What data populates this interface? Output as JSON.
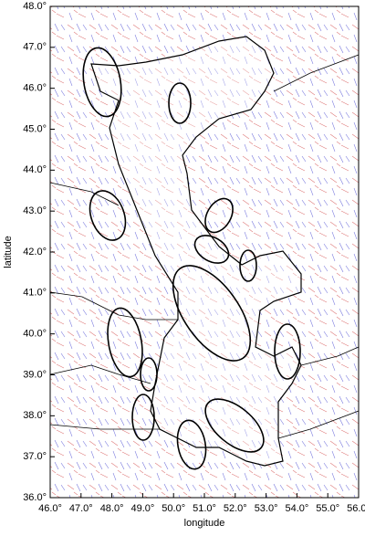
{
  "axes": {
    "x_label": "longitude",
    "y_label": "latitude",
    "xlim": [
      46,
      56
    ],
    "ylim": [
      36,
      48
    ],
    "xticks": [
      {
        "value": 46,
        "label": "46.0°"
      },
      {
        "value": 47,
        "label": "47.0°"
      },
      {
        "value": 48,
        "label": "48.0°"
      },
      {
        "value": 49,
        "label": "49.0°"
      },
      {
        "value": 50,
        "label": "50.0°"
      },
      {
        "value": 51,
        "label": "51.0°"
      },
      {
        "value": 52,
        "label": "52.0°"
      },
      {
        "value": 53,
        "label": "53.0°"
      },
      {
        "value": 54,
        "label": "54.0°"
      },
      {
        "value": 55,
        "label": "55.0°"
      },
      {
        "value": 56,
        "label": "56.0°"
      }
    ],
    "yticks": [
      {
        "value": 36,
        "label": "36.0°"
      },
      {
        "value": 37,
        "label": "37.0°"
      },
      {
        "value": 38,
        "label": "38.0°"
      },
      {
        "value": 39,
        "label": "39.0°"
      },
      {
        "value": 40,
        "label": "40.0°"
      },
      {
        "value": 41,
        "label": "41.0°"
      },
      {
        "value": 42,
        "label": "42.0°"
      },
      {
        "value": 43,
        "label": "43.0°"
      },
      {
        "value": 44,
        "label": "44.0°"
      },
      {
        "value": 45,
        "label": "45.0°"
      },
      {
        "value": 46,
        "label": "46.0°"
      },
      {
        "value": 47,
        "label": "47.0°"
      },
      {
        "value": 48,
        "label": "48.0°"
      }
    ]
  }
}
